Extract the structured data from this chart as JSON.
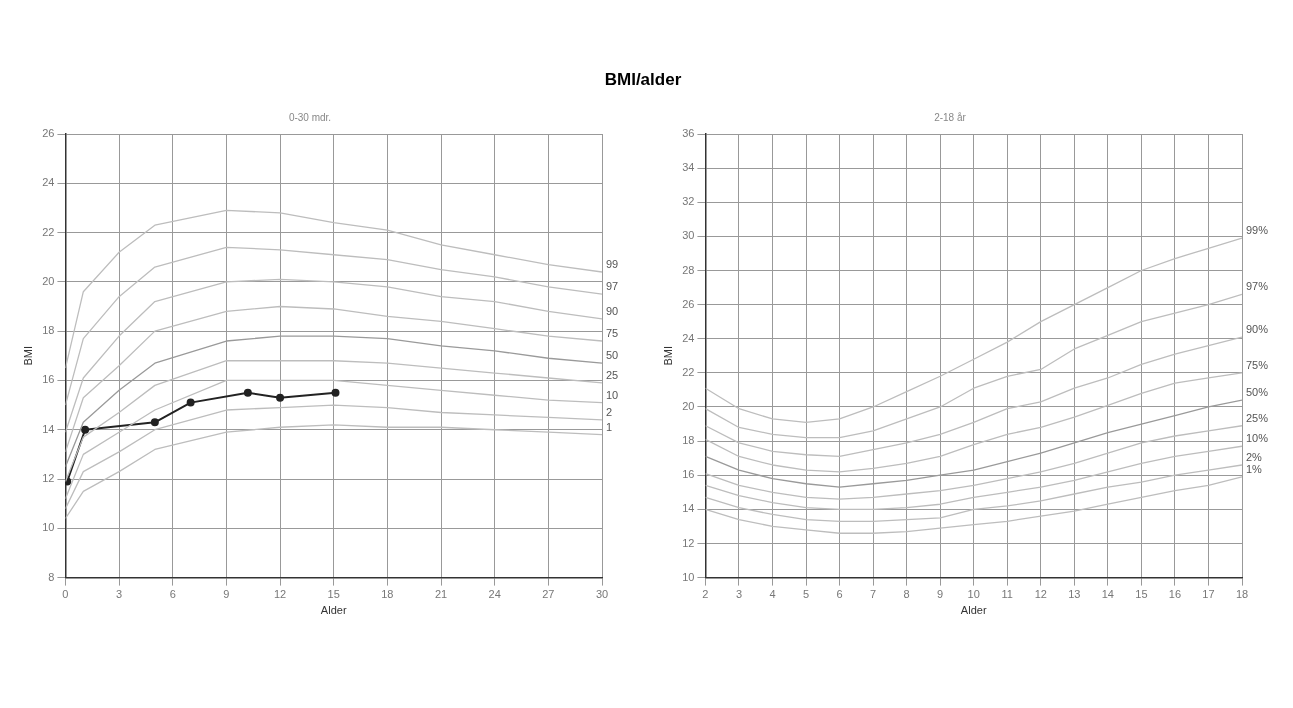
{
  "chart_data": [
    {
      "type": "line",
      "title": "BMI/alder",
      "subtitle": "0-30 mdr.",
      "xlabel": "Alder",
      "ylabel": "BMI",
      "xlim": [
        0,
        30
      ],
      "xticks": [
        0,
        3,
        6,
        9,
        12,
        15,
        18,
        21,
        24,
        27,
        30
      ],
      "ylim": [
        8,
        26
      ],
      "yticks": [
        8,
        10,
        12,
        14,
        16,
        18,
        20,
        22,
        24,
        26
      ],
      "grid": true,
      "marker": "none",
      "line_style": "solid",
      "x": [
        0,
        1,
        3,
        5,
        9,
        12,
        15,
        18,
        21,
        24,
        27,
        30
      ],
      "series": [
        {
          "name": "99",
          "color": "#bdbdbd",
          "values": [
            16.5,
            19.6,
            21.2,
            22.3,
            22.9,
            22.8,
            22.4,
            22.1,
            21.5,
            21.1,
            20.7,
            20.4
          ]
        },
        {
          "name": "97",
          "color": "#bdbdbd",
          "values": [
            15.0,
            17.7,
            19.4,
            20.6,
            21.4,
            21.3,
            21.1,
            20.9,
            20.5,
            20.2,
            19.8,
            19.5
          ]
        },
        {
          "name": "90",
          "color": "#bdbdbd",
          "values": [
            13.9,
            16.1,
            17.8,
            19.2,
            20.0,
            20.1,
            20.0,
            19.8,
            19.4,
            19.2,
            18.8,
            18.5
          ]
        },
        {
          "name": "75",
          "color": "#bdbdbd",
          "values": [
            13.1,
            15.3,
            16.6,
            18.0,
            18.8,
            19.0,
            18.9,
            18.6,
            18.4,
            18.1,
            17.8,
            17.6
          ]
        },
        {
          "name": "50",
          "color": "#9a9a9a",
          "values": [
            12.5,
            14.3,
            15.6,
            16.7,
            17.6,
            17.8,
            17.8,
            17.7,
            17.4,
            17.2,
            16.9,
            16.7
          ]
        },
        {
          "name": "25",
          "color": "#bdbdbd",
          "values": [
            11.9,
            13.7,
            14.7,
            15.8,
            16.8,
            16.8,
            16.8,
            16.7,
            16.5,
            16.3,
            16.1,
            15.9
          ]
        },
        {
          "name": "10",
          "color": "#bdbdbd",
          "values": [
            11.2,
            13.0,
            13.9,
            14.8,
            16.0,
            16.0,
            16.0,
            15.8,
            15.6,
            15.4,
            15.2,
            15.1
          ]
        },
        {
          "name": "2",
          "color": "#bdbdbd",
          "values": [
            10.8,
            12.3,
            13.1,
            14.0,
            14.8,
            14.9,
            15.0,
            14.9,
            14.7,
            14.6,
            14.5,
            14.4
          ]
        },
        {
          "name": "1",
          "color": "#bdbdbd",
          "values": [
            10.4,
            11.5,
            12.3,
            13.2,
            13.9,
            14.1,
            14.2,
            14.1,
            14.1,
            14.0,
            13.9,
            13.8
          ]
        },
        {
          "color": "#222222",
          "marker": "circle",
          "x": [
            0.1,
            1.1,
            5,
            7,
            10.2,
            12,
            15.1
          ],
          "values": [
            11.9,
            14.0,
            14.3,
            15.1,
            15.5,
            15.3,
            15.5
          ]
        }
      ]
    },
    {
      "type": "line",
      "subtitle": "2-18 år",
      "xlabel": "Alder",
      "ylabel": "BMI",
      "xlim": [
        2,
        18
      ],
      "xticks": [
        2,
        3,
        4,
        5,
        6,
        7,
        8,
        9,
        10,
        11,
        12,
        13,
        14,
        15,
        16,
        17,
        18
      ],
      "ylim": [
        10,
        36
      ],
      "yticks": [
        10,
        12,
        14,
        16,
        18,
        20,
        22,
        24,
        26,
        28,
        30,
        32,
        34,
        36
      ],
      "grid": true,
      "marker": "none",
      "line_style": "solid",
      "x": [
        2,
        3,
        4,
        5,
        6,
        7,
        8,
        9,
        10,
        11,
        12,
        13,
        14,
        15,
        16,
        17,
        18
      ],
      "series": [
        {
          "name": "99%",
          "color": "#bdbdbd",
          "values": [
            21.1,
            19.9,
            19.3,
            19.1,
            19.3,
            20.0,
            20.9,
            21.8,
            22.8,
            23.8,
            25.0,
            26.0,
            27.0,
            28.0,
            28.7,
            29.3,
            29.9
          ]
        },
        {
          "name": "97%",
          "color": "#bdbdbd",
          "values": [
            19.9,
            18.8,
            18.4,
            18.2,
            18.2,
            18.6,
            19.3,
            20.0,
            21.1,
            21.8,
            22.2,
            23.4,
            24.2,
            25.0,
            25.5,
            26.0,
            26.6
          ]
        },
        {
          "name": "90%",
          "color": "#bdbdbd",
          "values": [
            18.9,
            17.9,
            17.4,
            17.2,
            17.1,
            17.5,
            17.9,
            18.4,
            19.1,
            19.9,
            20.3,
            21.1,
            21.7,
            22.5,
            23.1,
            23.6,
            24.1
          ]
        },
        {
          "name": "75%",
          "color": "#bdbdbd",
          "values": [
            18.1,
            17.1,
            16.6,
            16.3,
            16.2,
            16.4,
            16.7,
            17.1,
            17.8,
            18.4,
            18.8,
            19.4,
            20.1,
            20.8,
            21.4,
            21.7,
            22.0
          ]
        },
        {
          "name": "50%",
          "color": "#9a9a9a",
          "values": [
            17.1,
            16.3,
            15.8,
            15.5,
            15.3,
            15.5,
            15.7,
            16.0,
            16.3,
            16.8,
            17.3,
            17.9,
            18.5,
            19.0,
            19.5,
            20.0,
            20.4
          ]
        },
        {
          "name": "25%",
          "color": "#bdbdbd",
          "values": [
            16.1,
            15.4,
            15.0,
            14.7,
            14.6,
            14.7,
            14.9,
            15.1,
            15.4,
            15.8,
            16.2,
            16.7,
            17.3,
            17.9,
            18.3,
            18.6,
            18.9
          ]
        },
        {
          "name": "10%",
          "color": "#bdbdbd",
          "values": [
            15.4,
            14.8,
            14.4,
            14.1,
            14.0,
            14.0,
            14.1,
            14.3,
            14.7,
            15.0,
            15.3,
            15.7,
            16.2,
            16.7,
            17.1,
            17.4,
            17.7
          ]
        },
        {
          "name": "2%",
          "color": "#bdbdbd",
          "values": [
            14.7,
            14.1,
            13.7,
            13.4,
            13.3,
            13.3,
            13.4,
            13.5,
            14.0,
            14.2,
            14.5,
            14.9,
            15.3,
            15.6,
            16.0,
            16.3,
            16.6
          ]
        },
        {
          "name": "1%",
          "color": "#bdbdbd",
          "values": [
            14.0,
            13.4,
            13.0,
            12.8,
            12.6,
            12.6,
            12.7,
            12.9,
            13.1,
            13.3,
            13.6,
            13.9,
            14.3,
            14.7,
            15.1,
            15.4,
            15.9
          ]
        }
      ]
    }
  ]
}
